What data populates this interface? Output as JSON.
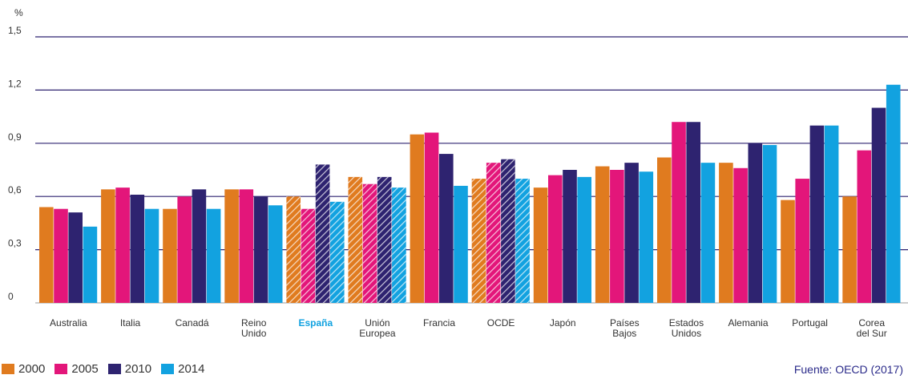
{
  "chart_data": {
    "type": "bar",
    "ylabel": "%",
    "ylim": [
      0,
      1.5
    ],
    "yticks": [
      "0",
      "0,3",
      "0,6",
      "0,9",
      "1,2",
      "1,5"
    ],
    "ytick_values": [
      0,
      0.3,
      0.6,
      0.9,
      1.2,
      1.5
    ],
    "categories": [
      "Australia",
      "Italia",
      "Canadá",
      "Reino Unido",
      "España",
      "Unión Europea",
      "Francia",
      "OCDE",
      "Japón",
      "Países Bajos",
      "Estados Unidos",
      "Alemania",
      "Portugal",
      "Corea del Sur"
    ],
    "category_lines": [
      [
        "Australia"
      ],
      [
        "Italia"
      ],
      [
        "Canadá"
      ],
      [
        "Reino",
        "Unido"
      ],
      [
        "España"
      ],
      [
        "Unión",
        "Europea"
      ],
      [
        "Francia"
      ],
      [
        "OCDE"
      ],
      [
        "Japón"
      ],
      [
        "Países",
        "Bajos"
      ],
      [
        "Estados",
        "Unidos"
      ],
      [
        "Alemania"
      ],
      [
        "Portugal"
      ],
      [
        "Corea",
        "del Sur"
      ]
    ],
    "highlight_category": "España",
    "hatched_categories": [
      "España",
      "Unión Europea",
      "OCDE"
    ],
    "series": [
      {
        "name": "2000",
        "color": "#e07b1f",
        "values": [
          0.54,
          0.64,
          0.53,
          0.64,
          0.6,
          0.71,
          0.95,
          0.7,
          0.65,
          0.77,
          0.82,
          0.79,
          0.58,
          0.6
        ]
      },
      {
        "name": "2005",
        "color": "#e3167a",
        "values": [
          0.53,
          0.65,
          0.6,
          0.64,
          0.53,
          0.67,
          0.96,
          0.79,
          0.72,
          0.75,
          1.02,
          0.76,
          0.7,
          0.86
        ]
      },
      {
        "name": "2010",
        "color": "#2e2370",
        "values": [
          0.51,
          0.61,
          0.64,
          0.6,
          0.78,
          0.71,
          0.84,
          0.81,
          0.75,
          0.79,
          1.02,
          0.9,
          1.0,
          1.1
        ]
      },
      {
        "name": "2014",
        "color": "#12a2e0",
        "values": [
          0.43,
          0.53,
          0.53,
          0.55,
          0.57,
          0.65,
          0.66,
          0.7,
          0.71,
          0.74,
          0.79,
          0.89,
          1.0,
          1.23
        ]
      }
    ],
    "legend_position": "bottom-left",
    "grid": true
  },
  "source": "Fuente: OECD (2017)",
  "colors": {
    "axis_line": "#2e2370",
    "highlight_label": "#12a2e0",
    "text": "#333333"
  }
}
